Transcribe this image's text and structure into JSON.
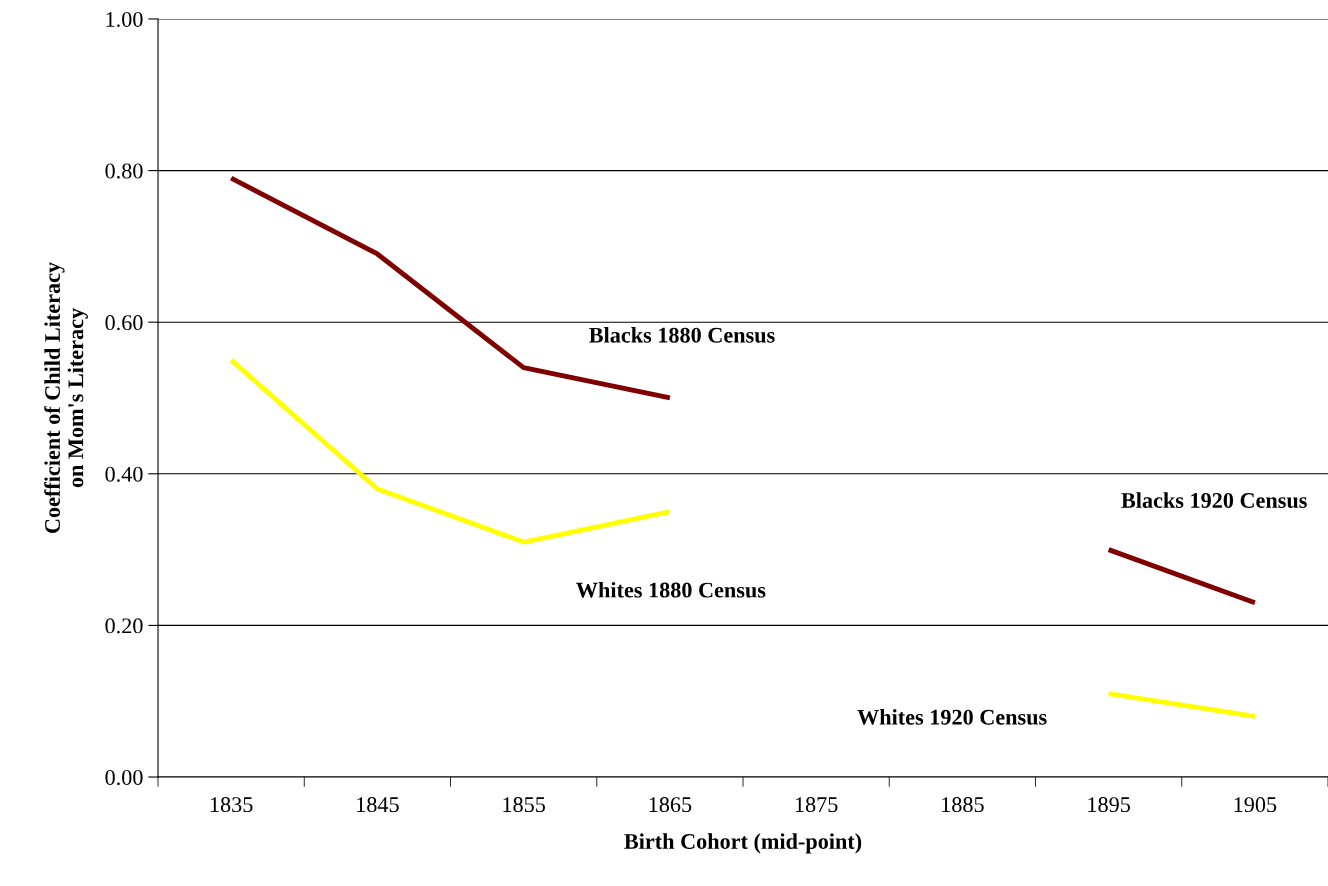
{
  "chart_data": {
    "type": "line",
    "xlabel": "Birth Cohort (mid-point)",
    "ylabel": "Coefficient of Child Literacy\non Mom's Literacy",
    "categories": [
      "1835",
      "1845",
      "1855",
      "1865",
      "1875",
      "1885",
      "1895",
      "1905"
    ],
    "ylim": [
      0,
      1
    ],
    "yticks": [
      {
        "value": 0,
        "label": "0.00"
      },
      {
        "value": 0.2,
        "label": "0.20"
      },
      {
        "value": 0.4,
        "label": "0.40"
      },
      {
        "value": 0.6,
        "label": "0.60"
      },
      {
        "value": 0.8,
        "label": "0.80"
      },
      {
        "value": 1,
        "label": "1.00"
      }
    ],
    "grid": "y",
    "legend": false,
    "marker": "none",
    "line_style": "solid",
    "series": [
      {
        "name": "Blacks 1880 Census",
        "color": "#800000",
        "values": [
          0.79,
          0.69,
          0.54,
          0.5,
          null,
          null,
          null,
          null
        ]
      },
      {
        "name": "Whites 1880 Census",
        "color": "#ffff00",
        "values": [
          0.55,
          0.38,
          0.31,
          0.35,
          null,
          null,
          null,
          null
        ]
      },
      {
        "name": "Blacks 1920 Census",
        "color": "#800000",
        "values": [
          null,
          null,
          null,
          null,
          null,
          null,
          0.3,
          0.23
        ]
      },
      {
        "name": "Whites 1920 Census",
        "color": "#ffff00",
        "values": [
          null,
          null,
          null,
          null,
          null,
          null,
          0.11,
          0.08
        ]
      }
    ]
  }
}
